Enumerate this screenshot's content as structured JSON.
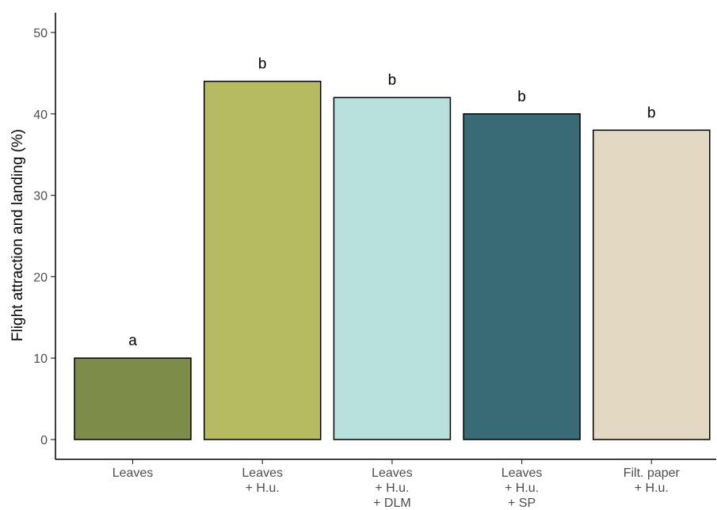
{
  "chart_data": {
    "type": "bar",
    "categories": [
      [
        "Leaves"
      ],
      [
        "Leaves",
        "+ H.u."
      ],
      [
        "Leaves",
        "+ H.u.",
        "+ DLM"
      ],
      [
        "Leaves",
        "+ H.u.",
        "+ SP"
      ],
      [
        "Filt. paper",
        "+ H.u."
      ]
    ],
    "values": [
      10,
      44,
      42,
      40,
      38
    ],
    "significance_letters": [
      "a",
      "b",
      "b",
      "b",
      "b"
    ],
    "colors": [
      "#7e8c4a",
      "#b6ba61",
      "#b8e0dc",
      "#396b76",
      "#e3d9c2"
    ],
    "title": "",
    "xlabel": "",
    "ylabel": "Flight attraction and landing (%)",
    "ylim": [
      0,
      52
    ],
    "yticks": [
      0,
      10,
      20,
      30,
      40,
      50
    ],
    "grid": false,
    "legend": "none"
  }
}
